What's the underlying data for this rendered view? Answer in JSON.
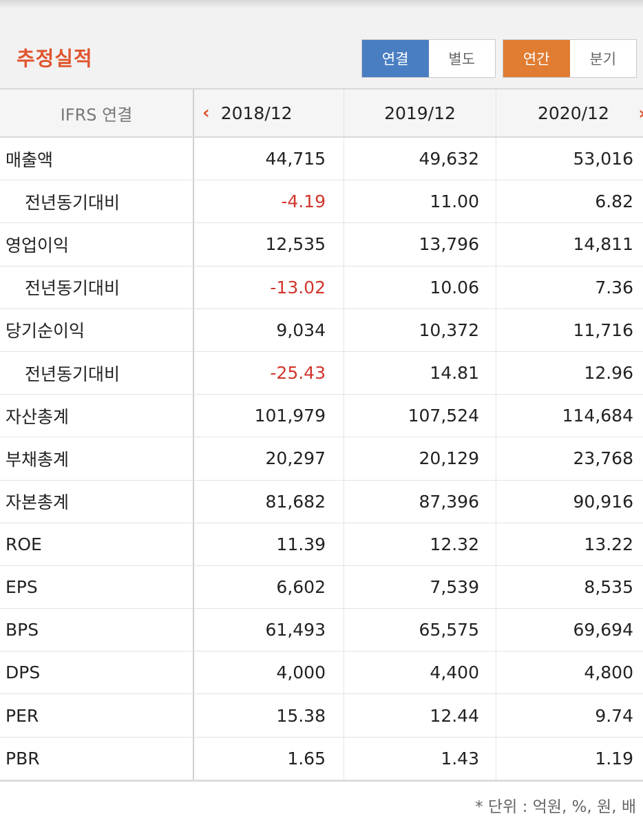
{
  "header": {
    "title": "추정실적",
    "toggle_type": {
      "options": [
        "연결",
        "별도"
      ],
      "selected": "연결"
    },
    "toggle_period": {
      "options": [
        "연간",
        "분기"
      ],
      "selected": "연간"
    }
  },
  "table": {
    "label_header": "IFRS 연결",
    "years": [
      "2018/12",
      "2019/12",
      "2020/12"
    ],
    "prev_arrow": "‹",
    "next_arrow": "›",
    "rows": [
      {
        "label": "매출액",
        "sub": false,
        "values": [
          "44,715",
          "49,632",
          "53,016"
        ]
      },
      {
        "label": "전년동기대비",
        "sub": true,
        "values": [
          "-4.19",
          "11.00",
          "6.82"
        ]
      },
      {
        "label": "영업이익",
        "sub": false,
        "values": [
          "12,535",
          "13,796",
          "14,811"
        ]
      },
      {
        "label": "전년동기대비",
        "sub": true,
        "values": [
          "-13.02",
          "10.06",
          "7.36"
        ]
      },
      {
        "label": "당기순이익",
        "sub": false,
        "values": [
          "9,034",
          "10,372",
          "11,716"
        ]
      },
      {
        "label": "전년동기대비",
        "sub": true,
        "values": [
          "-25.43",
          "14.81",
          "12.96"
        ]
      },
      {
        "label": "자산총계",
        "sub": false,
        "values": [
          "101,979",
          "107,524",
          "114,684"
        ]
      },
      {
        "label": "부채총계",
        "sub": false,
        "values": [
          "20,297",
          "20,129",
          "23,768"
        ]
      },
      {
        "label": "자본총계",
        "sub": false,
        "values": [
          "81,682",
          "87,396",
          "90,916"
        ]
      },
      {
        "label": "ROE",
        "sub": false,
        "values": [
          "11.39",
          "12.32",
          "13.22"
        ]
      },
      {
        "label": "EPS",
        "sub": false,
        "values": [
          "6,602",
          "7,539",
          "8,535"
        ]
      },
      {
        "label": "BPS",
        "sub": false,
        "values": [
          "61,493",
          "65,575",
          "69,694"
        ]
      },
      {
        "label": "DPS",
        "sub": false,
        "values": [
          "4,000",
          "4,400",
          "4,800"
        ]
      },
      {
        "label": "PER",
        "sub": false,
        "values": [
          "15.38",
          "12.44",
          "9.74"
        ]
      },
      {
        "label": "PBR",
        "sub": false,
        "values": [
          "1.65",
          "1.43",
          "1.19"
        ]
      }
    ]
  },
  "footnote": "* 단위 : 억원, %, 원, 배",
  "colors": {
    "accent": "#e0552e",
    "blue": "#4a7ec2",
    "orange": "#e07d33",
    "negative": "#d0362b"
  }
}
